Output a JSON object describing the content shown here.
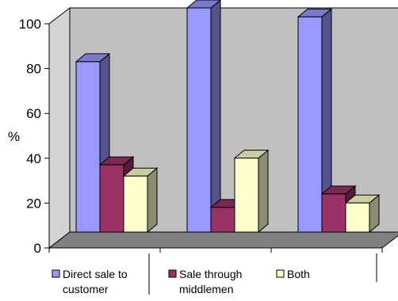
{
  "chart_data": {
    "type": "bar",
    "categories": [
      "",
      "",
      ""
    ],
    "series": [
      {
        "name": "Direct sale to customer",
        "values": [
          76,
          100,
          96
        ],
        "color": "#9999ff"
      },
      {
        "name": "Sale through middlemen",
        "values": [
          30,
          11,
          17
        ],
        "color": "#993366"
      },
      {
        "name": "Both",
        "values": [
          25,
          33,
          13
        ],
        "color": "#ffffcc"
      }
    ],
    "ylabel": "%",
    "ylim": [
      0,
      100
    ],
    "yticks": [
      0,
      20,
      40,
      60,
      80,
      100
    ],
    "grid": false,
    "wall_color": "#c0c0c0",
    "legend_position": "bottom",
    "legend_lines": [
      [
        "Direct sale to",
        "customer"
      ],
      [
        "Sale through",
        "middlemen"
      ],
      [
        "Both"
      ]
    ]
  }
}
